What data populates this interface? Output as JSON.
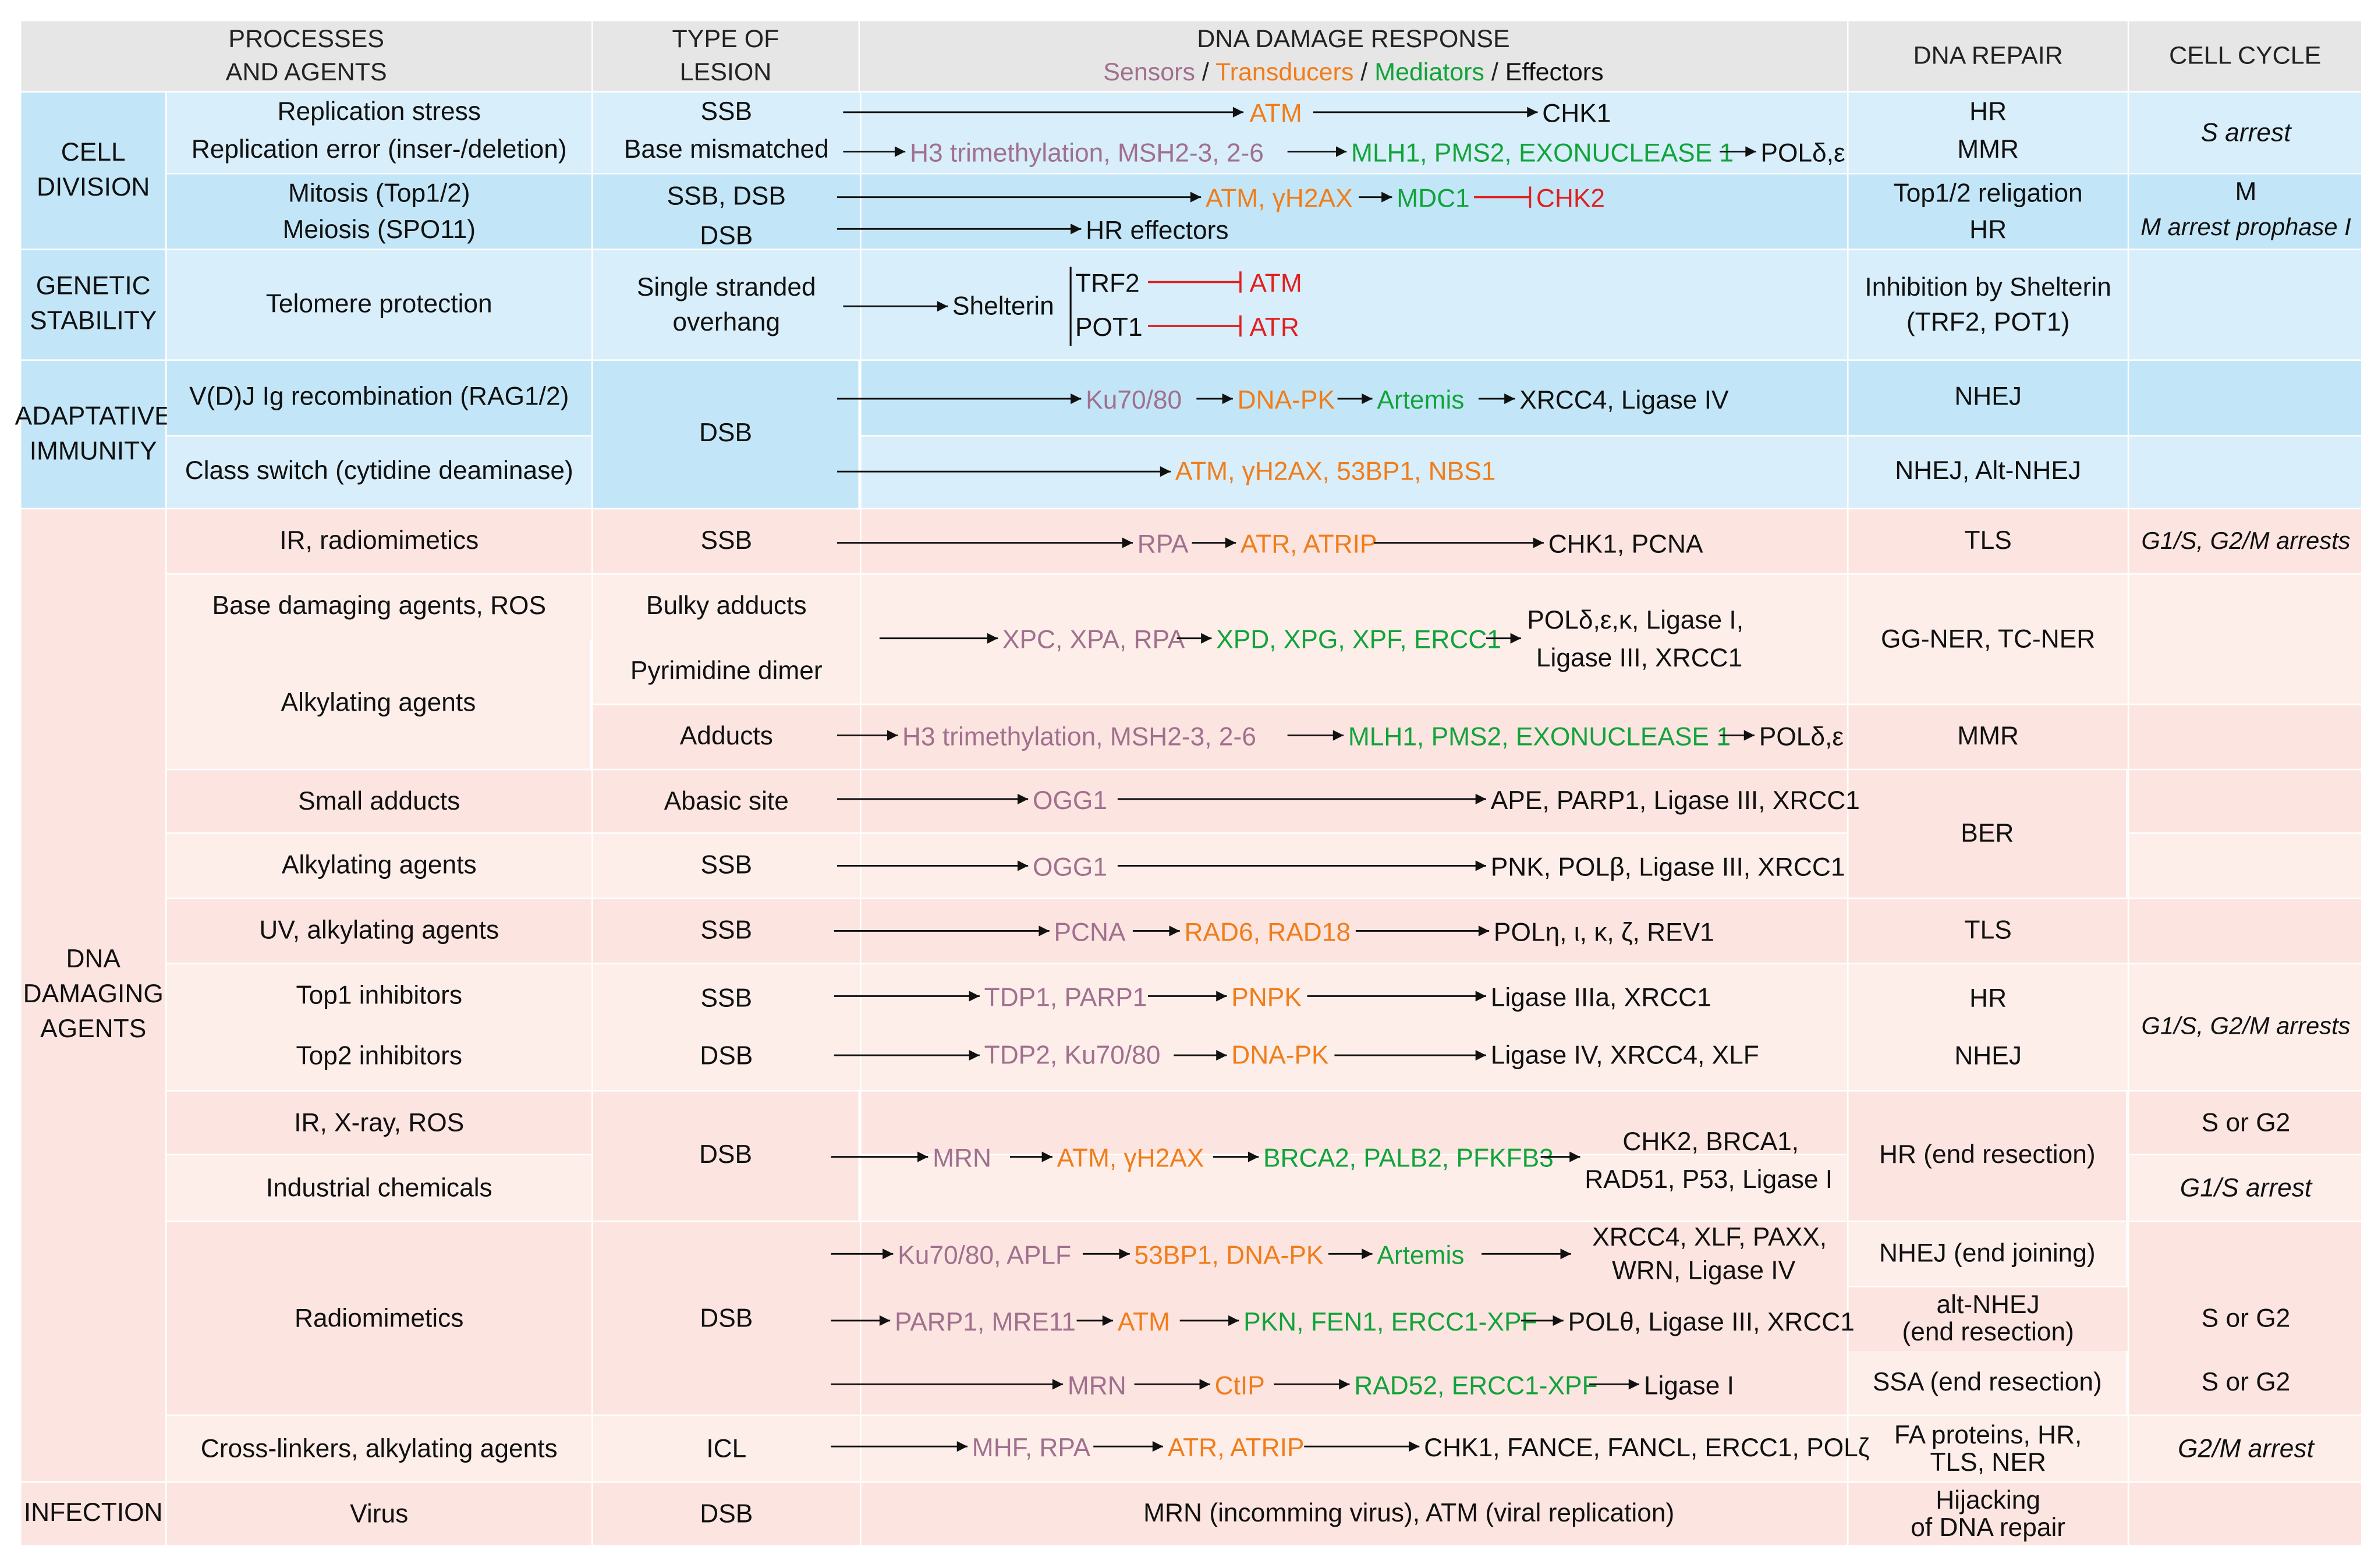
{
  "headers": {
    "processes_line1": "PROCESSES",
    "processes_line2": "AND AGENTS",
    "lesion_line1": "TYPE OF",
    "lesion_line2": "LESION",
    "ddr_title": "DNA DAMAGE RESPONSE",
    "legend_sensors": "Sensors",
    "legend_transducers": "Transducers",
    "legend_mediators": "Mediators",
    "legend_effectors": "Effectors",
    "legend_sep": " / ",
    "repair": "DNA REPAIR",
    "cycle": "CELL CYCLE"
  },
  "colors": {
    "sensor": "#a0708e",
    "transducer": "#f07d1a",
    "mediator": "#12a33b",
    "effector": "#111111",
    "inhibition": "#e02020",
    "blue_light": "#d8eefa",
    "blue_dark": "#c2e6f7",
    "pink_dark": "#fce4e0",
    "pink_light": "#fdeeea"
  },
  "categories": {
    "cell_division_1": "CELL",
    "cell_division_2": "DIVISION",
    "genetic_1": "GENETIC",
    "genetic_2": "STABILITY",
    "immunity_1": "ADAPTATIVE",
    "immunity_2": "IMMUNITY",
    "damaging_1": "DNA",
    "damaging_2": "DAMAGING",
    "damaging_3": "AGENTS",
    "infection": "INFECTION"
  },
  "processes": {
    "r1": "Replication stress",
    "r2": "Replication error (inser-/deletion)",
    "r3": "Mitosis (Top1/2)",
    "r4": "Meiosis (SPO11)",
    "r5": "Telomere protection",
    "r6": "V(D)J Ig recombination (RAG1/2)",
    "r7": "Class switch (cytidine deaminase)",
    "r8": "IR, radiomimetics",
    "r9": "Base damaging agents, ROS",
    "r10": "Alkylating agents",
    "r11": "Small adducts",
    "r12": "Alkylating agents",
    "r13": "UV, alkylating agents",
    "r14": "Top1 inhibitors",
    "r15": "Top2 inhibitors",
    "r16": "IR, X-ray, ROS",
    "r17": "Industrial chemicals",
    "r18": "Radiomimetics",
    "r19": "Cross-linkers, alkylating agents",
    "r20": "Virus"
  },
  "lesions": {
    "l1": "SSB",
    "l2": "Base mismatched",
    "l3": "SSB, DSB",
    "l4": "DSB",
    "l5a": "Single stranded",
    "l5b": "overhang",
    "l6": "DSB",
    "l7": "SSB",
    "l8": "Bulky adducts",
    "l9": "Pyrimidine dimer",
    "l10": "Adducts",
    "l11": "Abasic site",
    "l12": "SSB",
    "l13": "SSB",
    "l14": "SSB",
    "l15": "DSB",
    "l16": "DSB",
    "l17": "DSB",
    "l18": "ICL",
    "l19": "DSB"
  },
  "pathways": {
    "atm1": "ATM",
    "chk1": "CHK1",
    "h3a": "H3 trimethylation, MSH2-3, 2-6",
    "mlh1a": "MLH1, PMS2, EXONUCLEASE 1",
    "pola": "POLδ,ε",
    "atm_h2ax": "ATM, γH2AX",
    "mdc1": "MDC1",
    "chk2": "CHK2",
    "hr_eff": "HR effectors",
    "shelterin": "Shelterin",
    "trf2": "TRF2",
    "pot1": "POT1",
    "atm_inh": "ATM",
    "atr_inh": "ATR",
    "ku1": "Ku70/80",
    "dnapk1": "DNA-PK",
    "artemis1": "Artemis",
    "xrcc4a": "XRCC4, Ligase IV",
    "atm_cs": "ATM, γH2AX, 53BP1, NBS1",
    "rpa1": "RPA",
    "atr_atrip1": "ATR, ATRIP",
    "chk1_pcna": "CHK1, PCNA",
    "xpc": "XPC, XPA, RPA",
    "xpd": "XPD, XPG, XPF, ERCC1",
    "polk1": "POLδ,ε,κ, Ligase I,",
    "polk2": "Ligase III, XRCC1",
    "h3b": "H3 trimethylation, MSH2-3, 2-6",
    "mlh1b": "MLH1, PMS2, EXONUCLEASE 1",
    "polb": "POLδ,ε",
    "ogg1a": "OGG1",
    "ape": "APE, PARP1, Ligase III, XRCC1",
    "ogg1b": "OGG1",
    "pnk": "PNK, POLβ, Ligase III, XRCC1",
    "pcna": "PCNA",
    "rad6": "RAD6, RAD18",
    "poleta": "POLη, ι, κ, ζ, REV1",
    "tdp1": "TDP1, PARP1",
    "pnpk": "PNPK",
    "lig3a": "Ligase IIIa, XRCC1",
    "tdp2": "TDP2, Ku70/80",
    "dnapk2": "DNA-PK",
    "lig4xlf": "Ligase IV, XRCC4, XLF",
    "mrn1": "MRN",
    "atm_h2ax2": "ATM, γH2AX",
    "brca2": "BRCA2, PALB2, PFKFB3",
    "chk2b1": "CHK2, BRCA1,",
    "chk2b2": "RAD51, P53, Ligase I",
    "ku2": "Ku70/80, APLF",
    "bp53": "53BP1, DNA-PK",
    "artemis2": "Artemis",
    "xrcc4b1": "XRCC4, XLF, PAXX,",
    "xrcc4b2": "WRN, Ligase IV",
    "parp1": "PARP1, MRE11",
    "atm3": "ATM",
    "pkn": "PKN, FEN1, ERCC1-XPF",
    "poltheta": "POLθ, Ligase III, XRCC1",
    "mrn2": "MRN",
    "ctip": "CtIP",
    "rad52": "RAD52, ERCC1-XPF",
    "lig1": "Ligase I",
    "mhf": "MHF, RPA",
    "atr_atrip2": "ATR, ATRIP",
    "fance": "CHK1, FANCE, FANCL, ERCC1, POLζ",
    "virus": "MRN (incomming virus), ATM (viral replication)"
  },
  "repair": {
    "rp1": "HR",
    "rp2": "MMR",
    "rp3": "Top1/2 religation",
    "rp4": "HR",
    "rp5a": "Inhibition by Shelterin",
    "rp5b": "(TRF2, POT1)",
    "rp6": "NHEJ",
    "rp7": "NHEJ, Alt-NHEJ",
    "rp8": "TLS",
    "rp9": "GG-NER, TC-NER",
    "rp10": "MMR",
    "rp11": "BER",
    "rp12": "TLS",
    "rp13": "HR",
    "rp14": "NHEJ",
    "rp15": "HR (end resection)",
    "rp16": "NHEJ (end joining)",
    "rp17a": "alt-NHEJ",
    "rp17b": "(end resection)",
    "rp18": "SSA (end resection)",
    "rp19a": "FA proteins, HR,",
    "rp19b": "TLS, NER",
    "rp20a": "Hijacking",
    "rp20b": "of DNA repair"
  },
  "cycle": {
    "c1": "S arrest",
    "c2": "M",
    "c3": "M arrest prophase I",
    "c4": "G1/S, G2/M arrests",
    "c5": "G1/S, G2/M arrests",
    "c6": "S or G2",
    "c7": "G1/S arrest",
    "c8": "S or G2",
    "c9": "S or G2",
    "c10": "G2/M arrest"
  }
}
